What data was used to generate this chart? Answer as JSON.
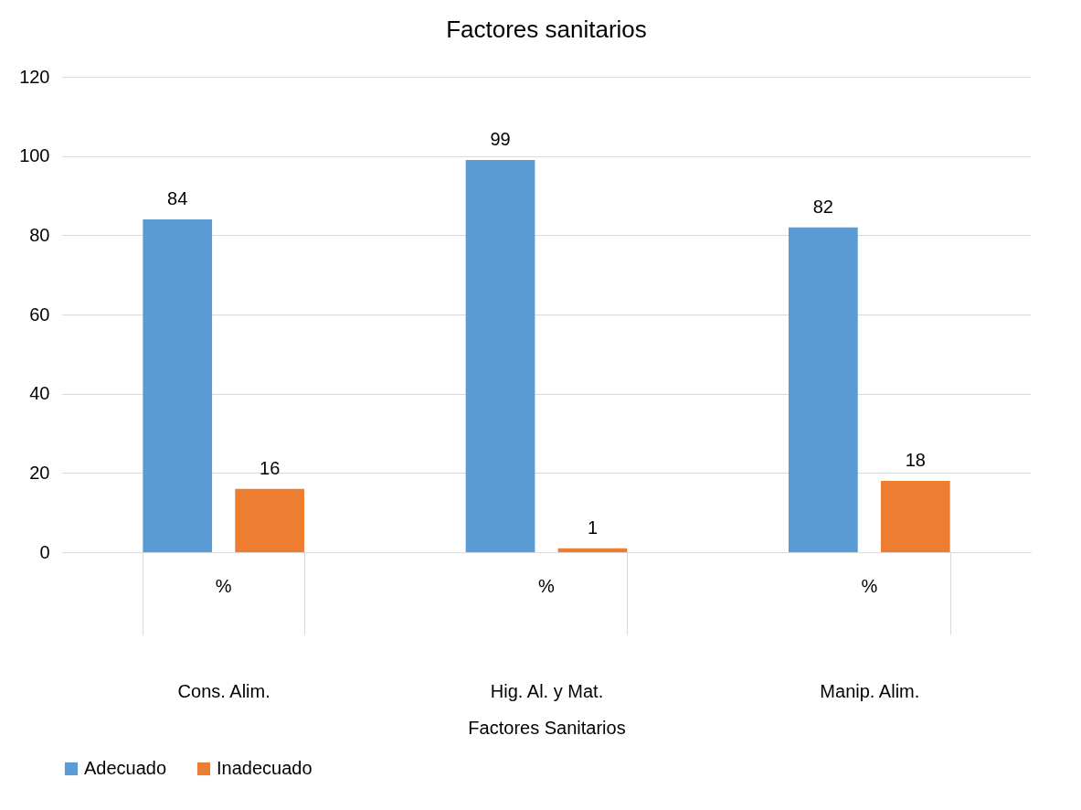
{
  "chart_data": {
    "type": "bar",
    "title": "Factores sanitarios",
    "xlabel": "Factores Sanitarios",
    "categories": [
      "Cons. Alim.",
      "Hig. Al. y Mat.",
      "Manip. Alim."
    ],
    "series": [
      {
        "name": "Adecuado",
        "color": "#5b9bd5",
        "values": [
          84,
          99,
          82
        ]
      },
      {
        "name": "Inadecuado",
        "color": "#ed7d31",
        "values": [
          16,
          1,
          18
        ]
      }
    ],
    "annotations": [
      "%",
      "%",
      "%"
    ],
    "ylim": [
      0,
      120
    ],
    "yticks": [
      0,
      20,
      40,
      60,
      80,
      100,
      120
    ],
    "grid": "y",
    "legend": "bottom",
    "data_labels": true
  }
}
